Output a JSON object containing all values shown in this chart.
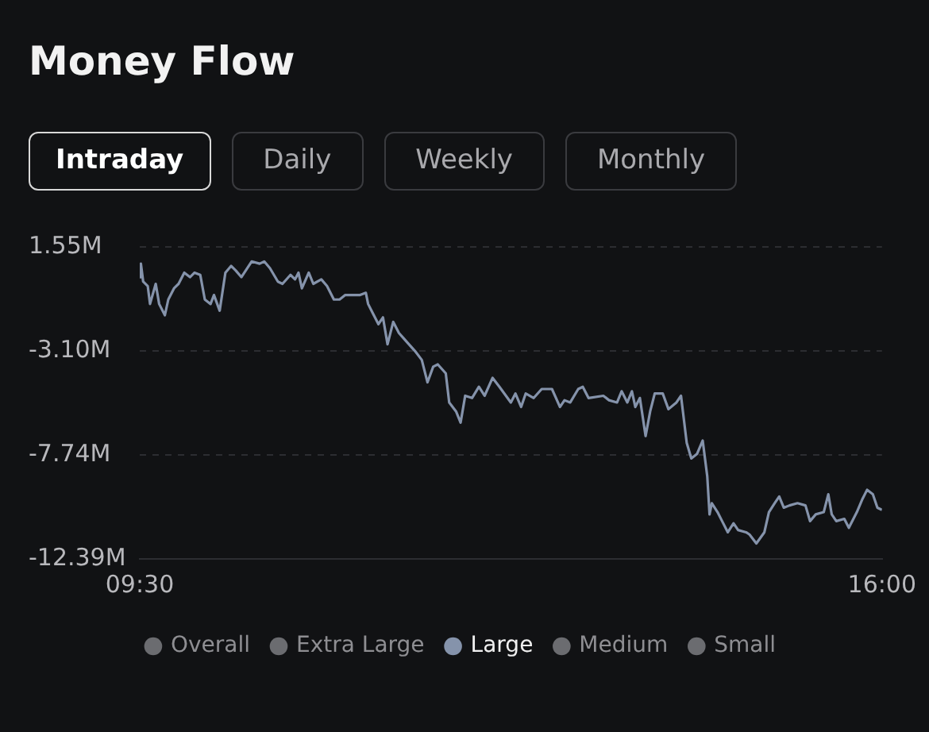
{
  "chart_data": {
    "type": "line",
    "title": "Money Flow",
    "annotations": [
      "Intraday",
      "Daily",
      "Weekly",
      "Monthly"
    ],
    "xlim": [
      9.5,
      16
    ],
    "xticks": [
      {
        "value": 9.5,
        "label": "09:30"
      },
      {
        "value": 16,
        "label": "16:00"
      }
    ],
    "ylim": [
      -12.39,
      1.55
    ],
    "yticks": [
      {
        "value": 1.55,
        "label": "1.55M"
      },
      {
        "value": -3.1,
        "label": "-3.10M"
      },
      {
        "value": -7.74,
        "label": "-7.74M"
      },
      {
        "value": -12.39,
        "label": "-12.39M"
      }
    ],
    "grid": "y",
    "legend": "bottom",
    "marker": "none",
    "line_style": "solid",
    "series": [
      {
        "name": "Overall",
        "color": "#6b6c70"
      },
      {
        "name": "Extra Large",
        "color": "#6b6c70"
      },
      {
        "name": "Large",
        "color": "#8593ab",
        "x": [
          9.5,
          9.51,
          9.53,
          9.57,
          9.59,
          9.64,
          9.67,
          9.72,
          9.75,
          9.8,
          9.84,
          9.89,
          9.94,
          9.98,
          10.03,
          10.07,
          10.12,
          10.15,
          10.2,
          10.25,
          10.3,
          10.34,
          10.39,
          10.48,
          10.55,
          10.59,
          10.64,
          10.71,
          10.75,
          10.82,
          10.86,
          10.89,
          10.92,
          10.98,
          11.02,
          11.09,
          11.14,
          11.2,
          11.25,
          11.3,
          11.39,
          11.43,
          11.48,
          11.5,
          11.54,
          11.59,
          11.63,
          11.67,
          11.72,
          11.77,
          11.84,
          11.91,
          11.97,
          12.02,
          12.07,
          12.11,
          12.18,
          12.21,
          12.27,
          12.31,
          12.35,
          12.41,
          12.47,
          12.52,
          12.59,
          12.65,
          12.75,
          12.79,
          12.84,
          12.88,
          12.95,
          13.02,
          13.11,
          13.18,
          13.22,
          13.27,
          13.34,
          13.38,
          13.43,
          13.56,
          13.61,
          13.68,
          13.72,
          13.77,
          13.81,
          13.84,
          13.88,
          13.93,
          13.97,
          14.01,
          14.08,
          14.13,
          14.2,
          14.24,
          14.29,
          14.33,
          14.38,
          14.43,
          14.47,
          14.49,
          14.51,
          14.56,
          14.6,
          14.65,
          14.7,
          14.74,
          14.81,
          14.84,
          14.9,
          14.97,
          15.01,
          15.06,
          15.1,
          15.14,
          15.19,
          15.26,
          15.33,
          15.37,
          15.42,
          15.49,
          15.53,
          15.56,
          15.6,
          15.67,
          15.71,
          15.78,
          15.83,
          15.87,
          15.92,
          15.96,
          16
        ],
        "values": [
          0.2,
          0.8,
          0.0,
          -0.2,
          -1.0,
          -0.1,
          -1.0,
          -1.5,
          -0.8,
          -0.3,
          -0.1,
          0.4,
          0.2,
          0.4,
          0.3,
          -0.8,
          -1.0,
          -0.6,
          -1.3,
          0.4,
          0.7,
          0.5,
          0.2,
          0.9,
          0.8,
          0.9,
          0.6,
          0.0,
          -0.1,
          0.3,
          0.1,
          0.4,
          -0.3,
          0.4,
          -0.1,
          0.1,
          -0.2,
          -0.8,
          -0.8,
          -0.6,
          -0.6,
          -0.6,
          -0.5,
          -1.0,
          -1.4,
          -1.9,
          -1.6,
          -2.8,
          -1.8,
          -2.3,
          -2.7,
          -3.1,
          -3.5,
          -4.5,
          -3.8,
          -3.7,
          -4.1,
          -5.4,
          -5.8,
          -6.3,
          -5.1,
          -5.2,
          -4.7,
          -5.1,
          -4.3,
          -4.7,
          -5.4,
          -5.0,
          -5.6,
          -5.0,
          -5.2,
          -4.8,
          -4.8,
          -5.6,
          -5.3,
          -5.4,
          -4.8,
          -4.7,
          -5.2,
          -5.1,
          -5.3,
          -5.4,
          -4.9,
          -5.4,
          -4.9,
          -5.6,
          -5.2,
          -6.9,
          -5.8,
          -5.0,
          -5.0,
          -5.7,
          -5.4,
          -5.1,
          -7.2,
          -7.9,
          -7.7,
          -7.1,
          -8.7,
          -10.4,
          -9.9,
          -10.3,
          -10.7,
          -11.2,
          -10.8,
          -11.1,
          -11.2,
          -11.3,
          -11.7,
          -11.2,
          -10.3,
          -9.9,
          -9.6,
          -10.1,
          -10.0,
          -9.9,
          -10.0,
          -10.7,
          -10.4,
          -10.3,
          -9.5,
          -10.4,
          -10.7,
          -10.6,
          -11.0,
          -10.3,
          -9.7,
          -9.3,
          -9.5,
          -10.1,
          -10.2
        ]
      },
      {
        "name": "Medium",
        "color": "#6b6c70"
      },
      {
        "name": "Small",
        "color": "#6b6c70"
      }
    ]
  }
}
